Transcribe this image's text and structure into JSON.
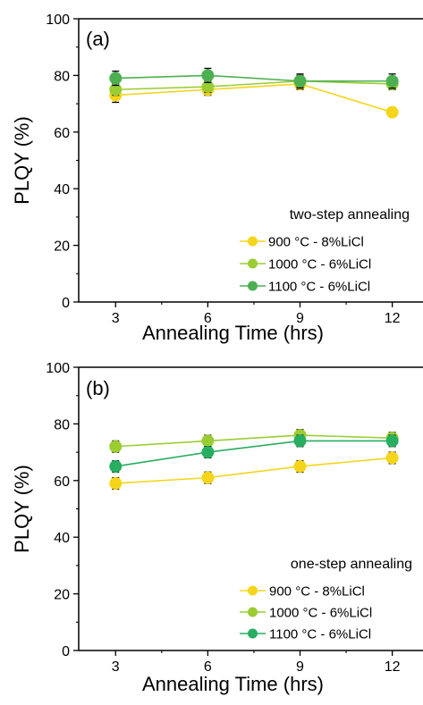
{
  "chart_data": [
    {
      "type": "line",
      "panel_label": "(a)",
      "legend_title": "two-step annealing",
      "legend_position": "bottom-right",
      "xlabel": "Annealing Time (hrs)",
      "ylabel": "PLQY (%)",
      "xlim": [
        1.8,
        13
      ],
      "ylim": [
        0,
        100
      ],
      "xticks": [
        3,
        6,
        9,
        12
      ],
      "yticks": [
        0,
        20,
        40,
        60,
        80,
        100
      ],
      "grid": false,
      "x": [
        3,
        6,
        9,
        12
      ],
      "series": [
        {
          "name": "900 °C - 8%LiCl",
          "color": "#f5d51a",
          "values": [
            73,
            75,
            77,
            67
          ],
          "errors": [
            2.5,
            2,
            2,
            1.5
          ]
        },
        {
          "name": "1000 °C - 6%LiCl",
          "color": "#9acd32",
          "values": [
            75,
            76,
            78,
            77
          ],
          "errors": [
            2,
            2,
            2,
            2
          ]
        },
        {
          "name": "1100 °C - 6%LiCl",
          "color": "#4cb050",
          "values": [
            79,
            80,
            78,
            78
          ],
          "errors": [
            2.5,
            2.5,
            2.5,
            2.5
          ]
        }
      ]
    },
    {
      "type": "line",
      "panel_label": "(b)",
      "legend_title": "one-step annealing",
      "legend_position": "bottom-right",
      "xlabel": "Annealing Time (hrs)",
      "ylabel": "PLQY (%)",
      "xlim": [
        1.8,
        13
      ],
      "ylim": [
        0,
        100
      ],
      "xticks": [
        3,
        6,
        9,
        12
      ],
      "yticks": [
        0,
        20,
        40,
        60,
        80,
        100
      ],
      "grid": false,
      "x": [
        3,
        6,
        9,
        12
      ],
      "series": [
        {
          "name": "900 °C  - 8%LiCl",
          "color": "#f5d51a",
          "values": [
            59,
            61,
            65,
            68
          ],
          "errors": [
            2,
            2,
            2,
            2
          ]
        },
        {
          "name": "1000 °C - 6%LiCl",
          "color": "#9acd32",
          "values": [
            72,
            74,
            76,
            75
          ],
          "errors": [
            2,
            2,
            2,
            2
          ]
        },
        {
          "name": "1100 °C - 6%LiCl",
          "color": "#27ae60",
          "values": [
            65,
            70,
            74,
            74
          ],
          "errors": [
            2,
            2,
            2,
            2
          ]
        }
      ]
    }
  ]
}
